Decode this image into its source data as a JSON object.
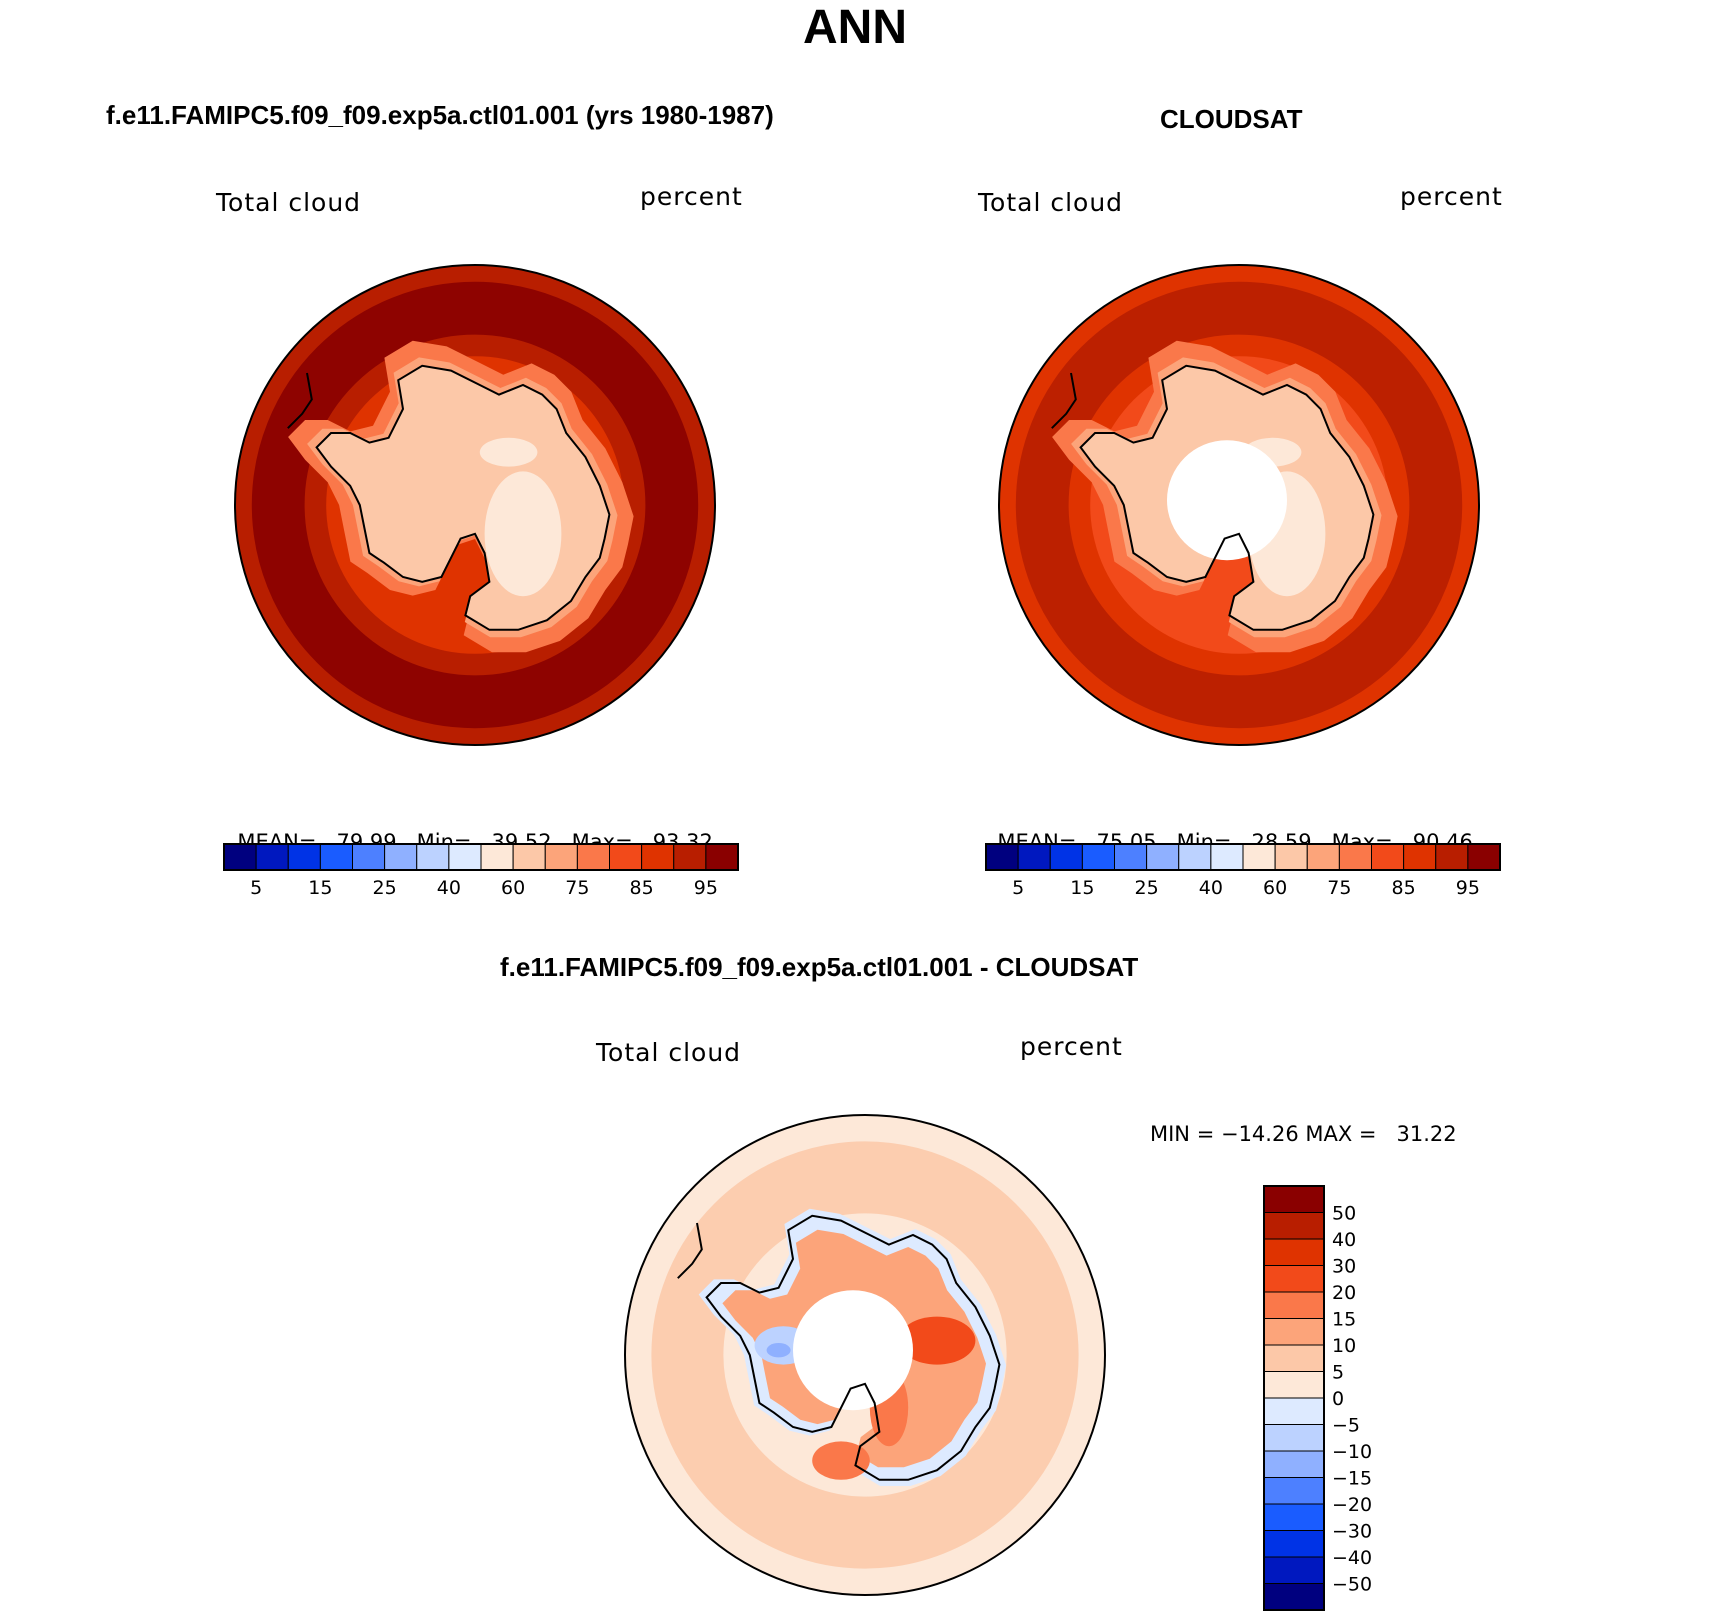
{
  "title": "ANN",
  "panels": [
    {
      "id": "model",
      "header": "f.e11.FAMIPC5.f09_f09.exp5a.ctl01.001 (yrs 1980-1987)",
      "variable": "Total cloud",
      "units": "percent",
      "stats": {
        "mean_label": "MEAN=",
        "mean": "79.99",
        "min_label": "Min=",
        "min": "39.52",
        "max_label": "Max=",
        "max": "93.32"
      },
      "ocean_level": 90,
      "has_pole_hole": false
    },
    {
      "id": "obs",
      "header": "CLOUDSAT",
      "variable": "Total cloud",
      "units": "percent",
      "stats": {
        "mean_label": "MEAN=",
        "mean": "75.05",
        "min_label": "Min=",
        "min": "28.59",
        "max_label": "Max=",
        "max": "90.46"
      },
      "ocean_level": 85,
      "has_pole_hole": true
    },
    {
      "id": "diff",
      "header": "f.e11.FAMIPC5.f09_f09.exp5a.ctl01.001 - CLOUDSAT",
      "variable": "Total cloud",
      "units": "percent",
      "stats_text": "MIN = −14.26 MAX =   31.22",
      "has_pole_hole": true
    }
  ],
  "colorbar_abs": {
    "colors": [
      "#00007f",
      "#0018bf",
      "#0033e6",
      "#1a5cff",
      "#4d80ff",
      "#8fb0ff",
      "#bcd2ff",
      "#ddeaff",
      "#fde8d8",
      "#fcc8a8",
      "#fca47a",
      "#fa784a",
      "#f24a1a",
      "#df3300",
      "#b81e00",
      "#8a0000"
    ],
    "tick_labels": [
      "5",
      "15",
      "25",
      "40",
      "60",
      "75",
      "85",
      "95"
    ]
  },
  "colorbar_diff": {
    "colors": [
      "#00007f",
      "#0018bf",
      "#0033e6",
      "#1a5cff",
      "#4d80ff",
      "#8fb0ff",
      "#bcd2ff",
      "#ddeaff",
      "#fde8d8",
      "#fcc8a8",
      "#fca47a",
      "#fa784a",
      "#f24a1a",
      "#df3300",
      "#b81e00",
      "#8a0000"
    ],
    "tick_labels": [
      "50",
      "40",
      "30",
      "20",
      "15",
      "10",
      "5",
      "0",
      "−5",
      "−10",
      "−15",
      "−20",
      "−30",
      "−40",
      "−50"
    ]
  }
}
